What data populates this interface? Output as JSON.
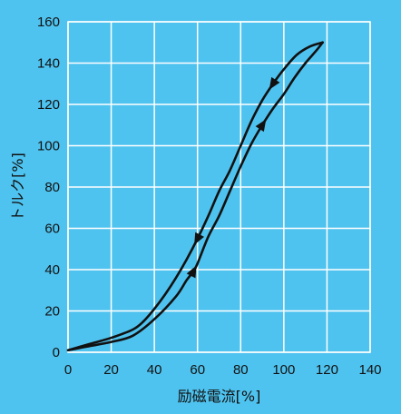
{
  "chart_data": {
    "type": "line",
    "xlabel": "励磁電流[%]",
    "ylabel": "トルク[%]",
    "xlim": [
      0,
      140
    ],
    "ylim": [
      0,
      160
    ],
    "x_ticks": [
      0,
      20,
      40,
      60,
      80,
      100,
      120,
      140
    ],
    "y_ticks": [
      0,
      20,
      40,
      60,
      80,
      100,
      120,
      140,
      160
    ],
    "grid": true,
    "colors": {
      "background": "#4fc3ef",
      "grid": "#ffffff",
      "line": "#111111"
    },
    "series": [
      {
        "direction": "increasing",
        "x": [
          0,
          5,
          10,
          20,
          30,
          40,
          50,
          55,
          58,
          60,
          65,
          70,
          75,
          80,
          85,
          90,
          95,
          100,
          105,
          110,
          115,
          118
        ],
        "y": [
          1,
          2,
          3,
          5,
          8,
          16,
          27,
          35,
          39,
          43,
          56,
          66,
          78,
          90,
          101,
          110,
          118,
          125,
          133,
          140,
          146,
          150
        ]
      },
      {
        "direction": "decreasing",
        "x": [
          118,
          112,
          106,
          100,
          95,
          90,
          85,
          80,
          75,
          70,
          65,
          60,
          55,
          50,
          45,
          40,
          35,
          30,
          20,
          10,
          0
        ],
        "y": [
          150,
          148,
          144,
          137,
          130,
          122,
          112,
          100,
          88,
          78,
          66,
          55,
          45,
          36,
          28,
          21,
          15,
          11,
          7,
          4,
          1
        ]
      }
    ]
  }
}
